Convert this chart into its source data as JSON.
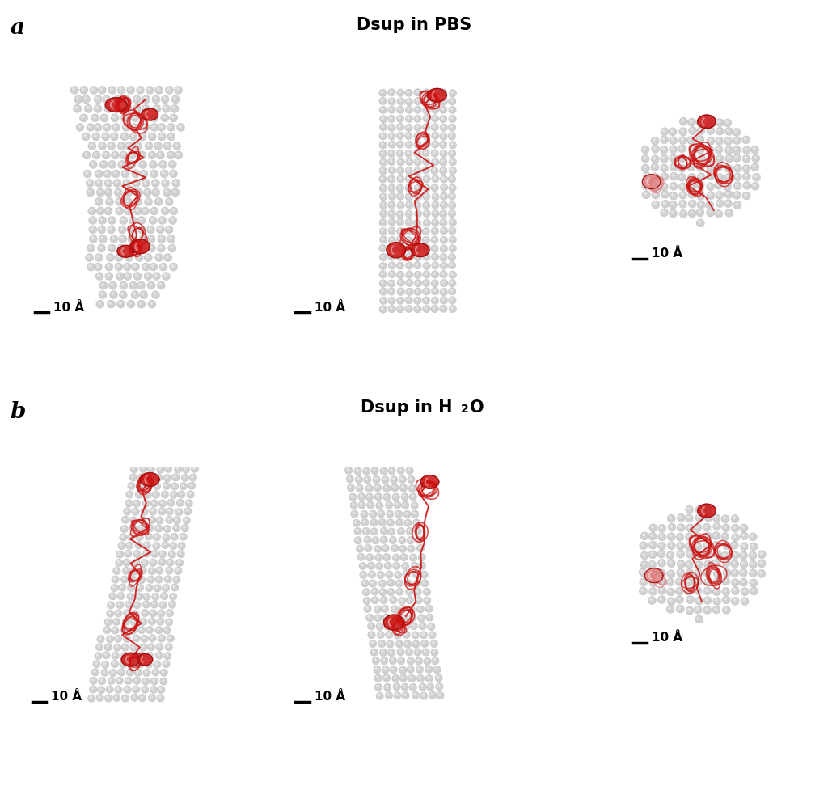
{
  "fig_width": 10.24,
  "fig_height": 9.72,
  "bg_color": "#ffffff",
  "title_a": "Dsup in PBS",
  "title_b": "Dsup in H₂O",
  "label_a": "a",
  "label_b": "b",
  "scale_bar_text": "10 Å",
  "title_fontsize": 15,
  "label_fontsize": 20,
  "scale_fontsize": 11,
  "sphere_base_color": "#d0d0d0",
  "sphere_highlight": "#e8e8e8",
  "sphere_shadow": "#b0b0b0",
  "sphere_edge_color": "#999999",
  "red_color": "#cc1111",
  "red_dark": "#991111",
  "pink_color": "#e08080",
  "pink_dark": "#cc6666"
}
